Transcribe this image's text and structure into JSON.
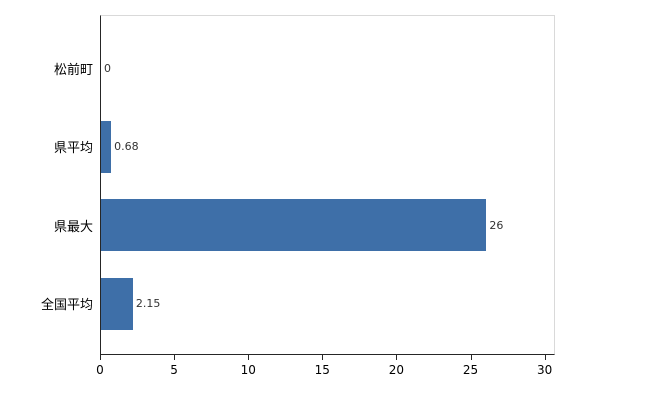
{
  "chart_data": {
    "type": "bar",
    "orientation": "horizontal",
    "title": "",
    "xlabel": "",
    "ylabel": "",
    "categories": [
      "松前町",
      "県平均",
      "県最大",
      "全国平均"
    ],
    "values": [
      0,
      0.68,
      26,
      2.15
    ],
    "value_labels": [
      "0",
      "0.68",
      "26",
      "2.15"
    ],
    "x_ticks": [
      0,
      5,
      10,
      15,
      20,
      25,
      30
    ],
    "xlim": [
      0,
      30.7
    ],
    "bar_color": "#3e6fa8",
    "axis_color": "#262626",
    "grid": false,
    "legend": false
  }
}
